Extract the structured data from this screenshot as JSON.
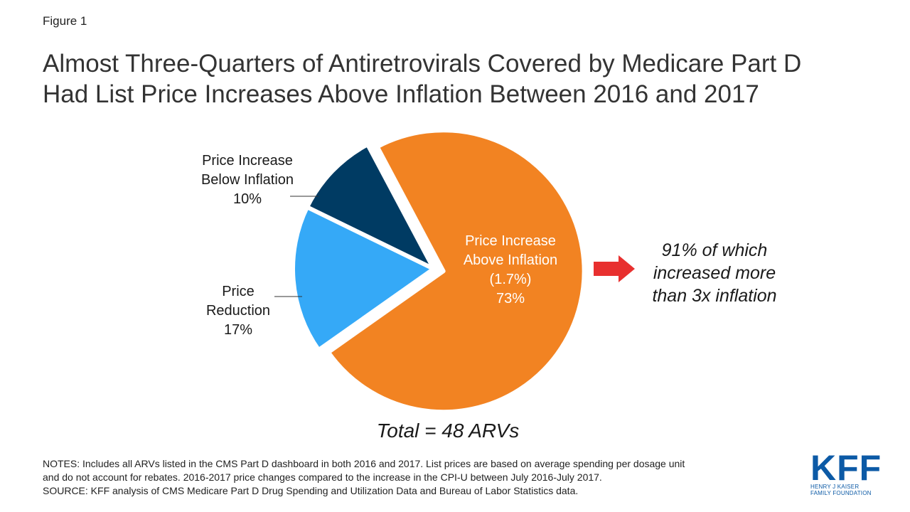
{
  "figure_label": "Figure 1",
  "title_lines": [
    "Almost Three-Quarters of Antiretrovirals Covered by Medicare Part D",
    "Had List Price Increases Above Inflation Between 2016 and 2017"
  ],
  "chart_data": {
    "type": "pie",
    "title": "Almost Three-Quarters of Antiretrovirals Covered by Medicare Part D Had List Price Increases Above Inflation Between 2016 and 2017",
    "slices": [
      {
        "name": "Price Increase Above Inflation (1.7%)",
        "value": 73,
        "color": "#f28322",
        "label_lines": [
          "Price Increase",
          "Above Inflation",
          "(1.7%)",
          "73%"
        ]
      },
      {
        "name": "Price Reduction",
        "value": 17,
        "color": "#35a9f7",
        "label_lines": [
          "Price",
          "Reduction",
          "17%"
        ]
      },
      {
        "name": "Price Increase Below Inflation",
        "value": 10,
        "color": "#003b63",
        "label_lines": [
          "Price Increase",
          "Below Inflation",
          "10%"
        ]
      }
    ],
    "annotation_lines": [
      "91% of which",
      "increased more",
      "than 3x inflation"
    ],
    "total_label": "Total = 48 ARVs"
  },
  "arrow_color": "#e8302f",
  "notes_lines": [
    "NOTES: Includes  all ARVs listed in the CMS Part D dashboard in both 2016 and 2017. List prices are based on average spending per dosage unit",
    "and do not account for rebates. 2016-2017 price changes compared to the increase in the CPI-U between July 2016-July 2017.",
    "SOURCE: KFF analysis of CMS Medicare Part D Drug Spending and Utilization Data and Bureau of Labor Statistics data."
  ],
  "logo": {
    "mark": "KFF",
    "line1": "HENRY J KAISER",
    "line2": "FAMILY FOUNDATION"
  }
}
